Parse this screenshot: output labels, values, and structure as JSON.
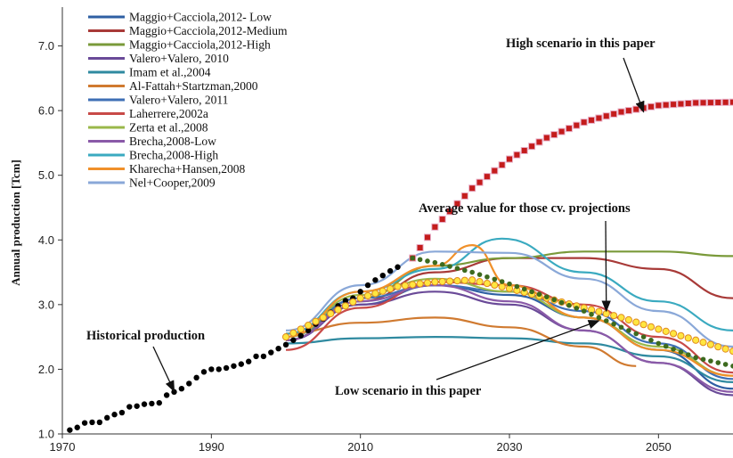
{
  "chart_data": {
    "type": "line",
    "ylabel": "Annual production [Tcm]",
    "xlim": [
      1970,
      2060
    ],
    "ylim": [
      1.0,
      7.6
    ],
    "x_ticks": [
      "1970",
      "1990",
      "2010",
      "2030",
      "2050"
    ],
    "x_tick_values": [
      1970,
      1990,
      2010,
      2030,
      2050
    ],
    "y_ticks": [
      "1.0",
      "2.0",
      "3.0",
      "4.0",
      "5.0",
      "6.0",
      "7.0"
    ],
    "y_tick_values": [
      1,
      2,
      3,
      4,
      5,
      6,
      7
    ],
    "grid": false,
    "legend_position": "top-left",
    "series": [
      {
        "name": "Maggio+Cacciola,2012- Low",
        "color": "#2e5fa3",
        "x": [
          2000,
          2010,
          2020,
          2030,
          2040,
          2050,
          2060
        ],
        "y": [
          2.45,
          3.0,
          3.3,
          3.15,
          2.8,
          2.3,
          1.7
        ]
      },
      {
        "name": "Maggio+Cacciola,2012-Medium",
        "color": "#a83a38",
        "x": [
          2000,
          2010,
          2020,
          2030,
          2040,
          2050,
          2060
        ],
        "y": [
          2.45,
          3.05,
          3.5,
          3.72,
          3.72,
          3.55,
          3.1
        ]
      },
      {
        "name": "Maggio+Cacciola,2012-High",
        "color": "#7a9a3a",
        "x": [
          2000,
          2010,
          2020,
          2030,
          2040,
          2050,
          2060
        ],
        "y": [
          2.45,
          3.1,
          3.6,
          3.72,
          3.82,
          3.82,
          3.75
        ]
      },
      {
        "name": "Valero+Valero, 2010",
        "color": "#6a4a98",
        "x": [
          2000,
          2010,
          2020,
          2030,
          2040,
          2050,
          2060
        ],
        "y": [
          2.45,
          3.0,
          3.2,
          3.0,
          2.6,
          2.1,
          1.6
        ]
      },
      {
        "name": "Imam et al.,2004",
        "color": "#2f8aa0",
        "x": [
          2000,
          2010,
          2020,
          2030,
          2040,
          2050,
          2060
        ],
        "y": [
          2.4,
          2.48,
          2.5,
          2.48,
          2.4,
          2.2,
          1.8
        ]
      },
      {
        "name": "Al-Fattah+Startzman,2000",
        "color": "#d07a30",
        "x": [
          2000,
          2010,
          2020,
          2030,
          2040,
          2047
        ],
        "y": [
          2.55,
          2.72,
          2.8,
          2.65,
          2.35,
          2.05
        ]
      },
      {
        "name": "Valero+Valero, 2011",
        "color": "#3f6fb5",
        "x": [
          2000,
          2010,
          2020,
          2030,
          2040,
          2050,
          2060
        ],
        "y": [
          2.5,
          3.1,
          3.3,
          3.2,
          2.9,
          2.4,
          1.85
        ]
      },
      {
        "name": "Laherrere,2002a",
        "color": "#c84a48",
        "x": [
          2000,
          2010,
          2020,
          2030,
          2040,
          2050,
          2060
        ],
        "y": [
          2.3,
          2.95,
          3.35,
          3.3,
          3.0,
          2.5,
          1.95
        ]
      },
      {
        "name": "Zerta et al.,2008",
        "color": "#9ab84a",
        "x": [
          2000,
          2010,
          2020,
          2030,
          2040,
          2050,
          2060
        ],
        "y": [
          2.5,
          3.15,
          3.4,
          3.2,
          2.8,
          2.35,
          1.9
        ]
      },
      {
        "name": "Brecha,2008-Low",
        "color": "#8a5aa8",
        "x": [
          2000,
          2010,
          2020,
          2030,
          2040,
          2050,
          2060
        ],
        "y": [
          2.45,
          3.05,
          3.3,
          3.05,
          2.6,
          2.1,
          1.65
        ]
      },
      {
        "name": "Brecha,2008-High",
        "color": "#3aaac0",
        "x": [
          2000,
          2010,
          2020,
          2029,
          2040,
          2050,
          2060
        ],
        "y": [
          2.55,
          3.2,
          3.55,
          4.02,
          3.5,
          3.05,
          2.6
        ]
      },
      {
        "name": "Kharecha+Hansen,2008",
        "color": "#f0902a",
        "x": [
          2000,
          2010,
          2020,
          2025,
          2030,
          2040,
          2050,
          2060
        ],
        "y": [
          2.5,
          3.2,
          3.6,
          3.92,
          3.3,
          2.8,
          2.3,
          1.9
        ]
      },
      {
        "name": "Nel+Cooper,2009",
        "color": "#8aa8d8",
        "x": [
          2000,
          2010,
          2020,
          2030,
          2040,
          2050,
          2060
        ],
        "y": [
          2.6,
          3.3,
          3.82,
          3.8,
          3.4,
          2.9,
          2.35
        ]
      }
    ],
    "highlight_series": [
      {
        "role": "historical",
        "style": "black-dots",
        "x": [
          1971,
          1972,
          1973,
          1974,
          1975,
          1976,
          1977,
          1978,
          1979,
          1980,
          1981,
          1982,
          1983,
          1984,
          1985,
          1986,
          1987,
          1988,
          1989,
          1990,
          1991,
          1992,
          1993,
          1994,
          1995,
          1996,
          1997,
          1998,
          1999,
          2000,
          2001,
          2002,
          2003,
          2004,
          2005,
          2006,
          2007,
          2008,
          2009,
          2010,
          2011,
          2012,
          2013,
          2014,
          2015
        ],
        "y": [
          1.06,
          1.1,
          1.17,
          1.18,
          1.18,
          1.25,
          1.3,
          1.33,
          1.42,
          1.43,
          1.46,
          1.47,
          1.48,
          1.6,
          1.65,
          1.7,
          1.78,
          1.87,
          1.96,
          2.0,
          2.0,
          2.02,
          2.05,
          2.08,
          2.12,
          2.2,
          2.2,
          2.26,
          2.32,
          2.38,
          2.45,
          2.52,
          2.6,
          2.7,
          2.78,
          2.88,
          2.98,
          3.06,
          3.1,
          3.2,
          3.3,
          3.38,
          3.45,
          3.52,
          3.58
        ]
      },
      {
        "role": "high-scenario",
        "style": "red-squares",
        "x": [
          2017,
          2020,
          2025,
          2030,
          2035,
          2040,
          2045,
          2050,
          2055,
          2060
        ],
        "y": [
          3.72,
          4.2,
          4.8,
          5.25,
          5.58,
          5.82,
          5.98,
          6.08,
          6.12,
          6.13
        ]
      },
      {
        "role": "average",
        "style": "yellow-circles",
        "x": [
          2000,
          2005,
          2010,
          2015,
          2020,
          2025,
          2030,
          2035,
          2040,
          2045,
          2050,
          2055,
          2060
        ],
        "y": [
          2.5,
          2.8,
          3.1,
          3.28,
          3.35,
          3.38,
          3.25,
          3.1,
          2.95,
          2.8,
          2.62,
          2.45,
          2.28
        ]
      },
      {
        "role": "low-scenario",
        "style": "green-dots",
        "x": [
          2017,
          2020,
          2025,
          2030,
          2035,
          2040,
          2045,
          2050,
          2055,
          2060
        ],
        "y": [
          3.72,
          3.65,
          3.5,
          3.32,
          3.12,
          2.9,
          2.65,
          2.4,
          2.18,
          2.05
        ]
      }
    ],
    "annotations": [
      {
        "text": "High scenario in this paper",
        "target": [
          2048,
          5.98
        ]
      },
      {
        "text": "Average value for those cv. projections",
        "target": [
          2043,
          2.9
        ]
      },
      {
        "text": "Historical production",
        "target": [
          1985,
          1.66
        ]
      },
      {
        "text": "Low scenario in this paper",
        "target": [
          2042,
          2.75
        ]
      }
    ]
  }
}
